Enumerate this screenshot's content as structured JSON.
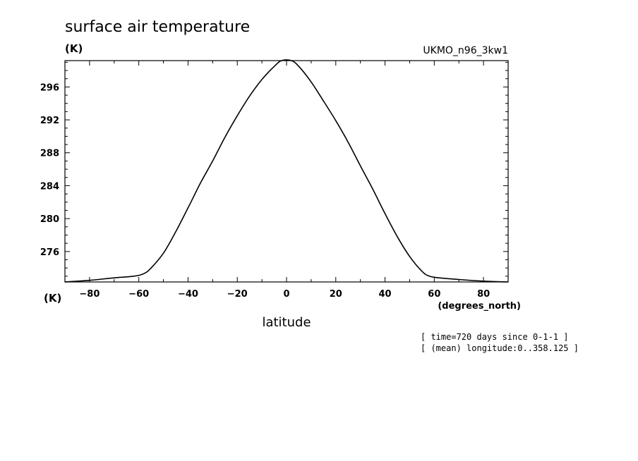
{
  "chart_data": {
    "type": "line",
    "title": "surface air temperature",
    "ylabel": "(K)",
    "model": "UKMO_n96_3kw1",
    "x_unit_label": "(K)",
    "xlabel": "latitude",
    "x_units": "(degrees_north)",
    "xlim": [
      -90,
      90
    ],
    "ylim": [
      272.3,
      299.2
    ],
    "x_ticks": [
      -80,
      -60,
      -40,
      -20,
      0,
      20,
      40,
      60,
      80
    ],
    "x_tick_labels": [
      "-80",
      "-60",
      "-40",
      "-20",
      "0",
      "20",
      "40",
      "60",
      "80"
    ],
    "y_ticks": [
      276,
      280,
      284,
      288,
      292,
      296
    ],
    "y_tick_labels": [
      "276",
      "280",
      "284",
      "288",
      "292",
      "296"
    ],
    "grid": false,
    "series": [
      {
        "x": [
          -90,
          -80,
          -70,
          -62,
          -58,
          -55,
          -50,
          -45,
          -40,
          -35,
          -30,
          -25,
          -20,
          -15,
          -10,
          -5,
          -2,
          2,
          5,
          10,
          15,
          20,
          25,
          30,
          35,
          40,
          45,
          50,
          55,
          58,
          62,
          70,
          80,
          90
        ],
        "values": [
          272.3,
          272.5,
          272.8,
          273.0,
          273.3,
          274.0,
          275.8,
          278.4,
          281.3,
          284.3,
          287.0,
          289.9,
          292.5,
          294.9,
          296.9,
          298.5,
          299.2,
          299.2,
          298.5,
          296.6,
          294.3,
          291.9,
          289.3,
          286.4,
          283.6,
          280.6,
          277.8,
          275.4,
          273.6,
          273.0,
          272.8,
          272.6,
          272.4,
          272.3
        ]
      }
    ],
    "notes": [
      "[ time=720 days since 0-1-1 ]",
      "[ (mean) longitude:0..358.125 ]"
    ]
  }
}
